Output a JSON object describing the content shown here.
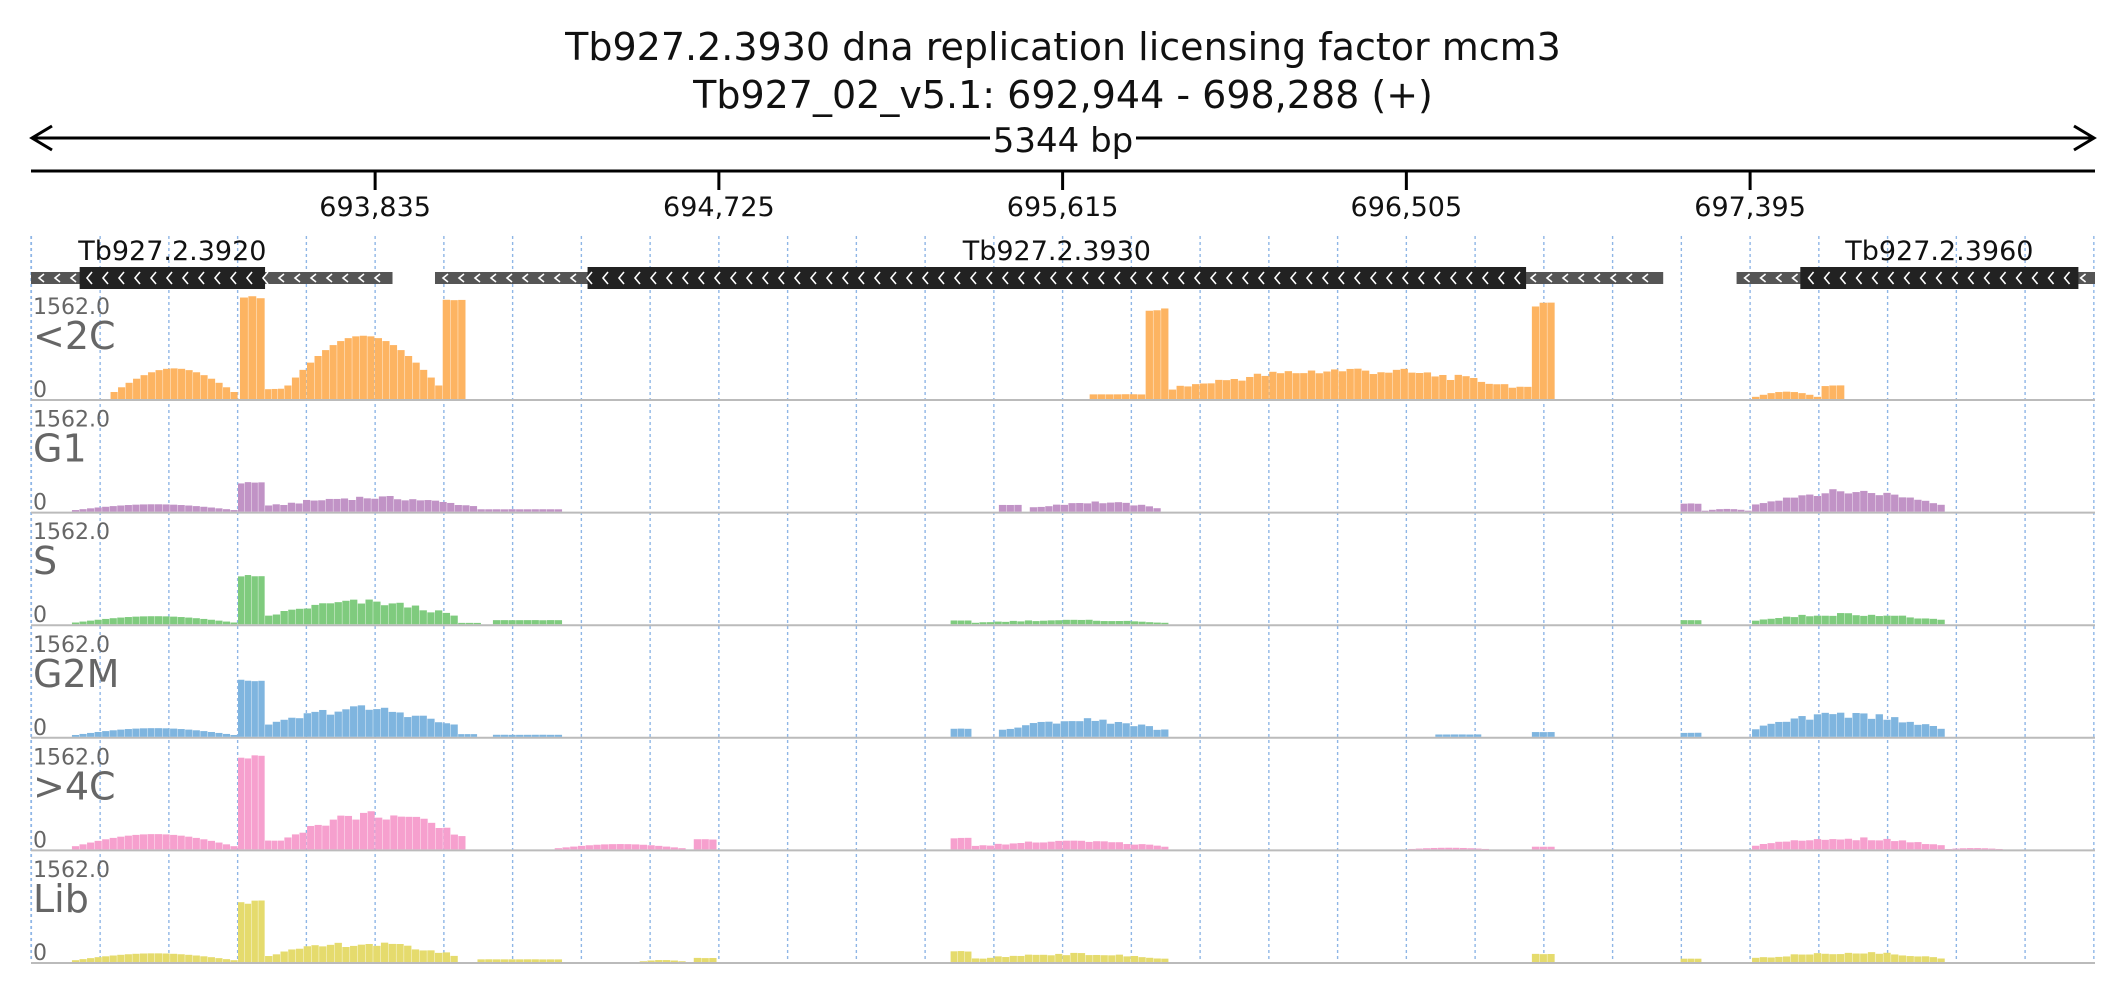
{
  "header": {
    "title_line1": "Tb927.2.3930  dna replication licensing factor mcm3",
    "title_line2": "Tb927_02_v5.1: 692,944 - 698,288 (+)",
    "span_label": "5344 bp"
  },
  "chart_data": {
    "type": "bar",
    "region": {
      "chromosome": "Tb927_02_v5.1",
      "start": 692944,
      "end": 698288,
      "strand": "+",
      "length_bp": 5344
    },
    "ticks": [
      {
        "pos": 693835,
        "label": "693,835"
      },
      {
        "pos": 694725,
        "label": "694,725"
      },
      {
        "pos": 695615,
        "label": "695,615"
      },
      {
        "pos": 696505,
        "label": "696,505"
      },
      {
        "pos": 697395,
        "label": "697,395"
      }
    ],
    "genes": [
      {
        "name": "Tb927.2.3920",
        "strand": "-",
        "utr_start": 692944,
        "utr_end": 693880,
        "cds_start": 693070,
        "cds_end": 693550
      },
      {
        "name": "Tb927.2.3930",
        "strand": "-",
        "utr_start": 693990,
        "utr_end": 697170,
        "cds_start": 694385,
        "cds_end": 696815
      },
      {
        "name": "Tb927.2.3960",
        "strand": "-",
        "utr_start": 697360,
        "utr_end": 698288,
        "cds_start": 697525,
        "cds_end": 698245
      }
    ],
    "ylim": [
      0,
      1562.0
    ],
    "y_max_label": "1562.0",
    "y_min_label": "0",
    "bin_width_bp": 20,
    "tracks": [
      {
        "name": "<2C",
        "color": "#fdb462",
        "segments": [
          {
            "start": 693150,
            "end": 693480,
            "profile": "hill",
            "peak": 460
          },
          {
            "start": 693485,
            "end": 693550,
            "profile": "flat",
            "peak": 1530
          },
          {
            "start": 693550,
            "end": 693600,
            "profile": "flat",
            "peak": 150
          },
          {
            "start": 693600,
            "end": 694010,
            "profile": "hill",
            "peak": 950
          },
          {
            "start": 694010,
            "end": 694070,
            "profile": "flat",
            "peak": 1500
          },
          {
            "start": 695685,
            "end": 695830,
            "profile": "flat",
            "peak": 70
          },
          {
            "start": 695830,
            "end": 695890,
            "profile": "flat",
            "peak": 1360
          },
          {
            "start": 695890,
            "end": 696830,
            "profile": "plateau",
            "peak": 430
          },
          {
            "start": 696830,
            "end": 696890,
            "profile": "flat",
            "peak": 1420
          },
          {
            "start": 697400,
            "end": 697580,
            "profile": "hill",
            "peak": 110
          },
          {
            "start": 697580,
            "end": 697640,
            "profile": "flat",
            "peak": 200
          }
        ]
      },
      {
        "name": "G1",
        "color": "#c193c6",
        "segments": [
          {
            "start": 693050,
            "end": 693480,
            "profile": "hill",
            "peak": 110
          },
          {
            "start": 693480,
            "end": 693550,
            "profile": "flat",
            "peak": 430
          },
          {
            "start": 693550,
            "end": 694100,
            "profile": "plateau",
            "peak": 210
          },
          {
            "start": 694100,
            "end": 694320,
            "profile": "flat",
            "peak": 35
          },
          {
            "start": 695450,
            "end": 695510,
            "profile": "flat",
            "peak": 100
          },
          {
            "start": 695530,
            "end": 695870,
            "profile": "plateau",
            "peak": 140
          },
          {
            "start": 697215,
            "end": 697270,
            "profile": "flat",
            "peak": 120
          },
          {
            "start": 697270,
            "end": 697400,
            "profile": "hill",
            "peak": 40
          },
          {
            "start": 697400,
            "end": 697900,
            "profile": "plateau",
            "peak": 300
          }
        ]
      },
      {
        "name": "S",
        "color": "#7fcb7e",
        "segments": [
          {
            "start": 693050,
            "end": 693480,
            "profile": "hill",
            "peak": 120
          },
          {
            "start": 693480,
            "end": 693550,
            "profile": "flat",
            "peak": 720
          },
          {
            "start": 693550,
            "end": 694050,
            "profile": "plateau",
            "peak": 330
          },
          {
            "start": 694050,
            "end": 694110,
            "profile": "flat",
            "peak": 20
          },
          {
            "start": 694140,
            "end": 694320,
            "profile": "flat",
            "peak": 60
          },
          {
            "start": 695325,
            "end": 695380,
            "profile": "flat",
            "peak": 55
          },
          {
            "start": 695380,
            "end": 695890,
            "profile": "plateau",
            "peak": 60
          },
          {
            "start": 697215,
            "end": 697270,
            "profile": "flat",
            "peak": 60
          },
          {
            "start": 697400,
            "end": 697900,
            "profile": "plateau",
            "peak": 150
          }
        ]
      },
      {
        "name": "G2M",
        "color": "#7fb5df",
        "segments": [
          {
            "start": 693050,
            "end": 693480,
            "profile": "hill",
            "peak": 130
          },
          {
            "start": 693480,
            "end": 693550,
            "profile": "flat",
            "peak": 860
          },
          {
            "start": 693550,
            "end": 694050,
            "profile": "plateau",
            "peak": 420
          },
          {
            "start": 694050,
            "end": 694100,
            "profile": "flat",
            "peak": 40
          },
          {
            "start": 694140,
            "end": 694320,
            "profile": "flat",
            "peak": 30
          },
          {
            "start": 695325,
            "end": 695380,
            "profile": "flat",
            "peak": 120
          },
          {
            "start": 695450,
            "end": 695890,
            "profile": "plateau",
            "peak": 250
          },
          {
            "start": 696580,
            "end": 696700,
            "profile": "flat",
            "peak": 35
          },
          {
            "start": 696830,
            "end": 696890,
            "profile": "flat",
            "peak": 70
          },
          {
            "start": 697215,
            "end": 697270,
            "profile": "flat",
            "peak": 60
          },
          {
            "start": 697400,
            "end": 697900,
            "profile": "plateau",
            "peak": 330
          }
        ]
      },
      {
        "name": ">4C",
        "color": "#f6a0ce",
        "segments": [
          {
            "start": 693050,
            "end": 693480,
            "profile": "hill",
            "peak": 230
          },
          {
            "start": 693480,
            "end": 693550,
            "profile": "flat",
            "peak": 1380
          },
          {
            "start": 693550,
            "end": 693600,
            "profile": "flat",
            "peak": 130
          },
          {
            "start": 693600,
            "end": 694070,
            "profile": "plateau",
            "peak": 520
          },
          {
            "start": 694300,
            "end": 694640,
            "profile": "hill",
            "peak": 80
          },
          {
            "start": 694660,
            "end": 694720,
            "profile": "flat",
            "peak": 150
          },
          {
            "start": 695325,
            "end": 695380,
            "profile": "flat",
            "peak": 170
          },
          {
            "start": 695380,
            "end": 695890,
            "profile": "plateau",
            "peak": 120
          },
          {
            "start": 696510,
            "end": 696720,
            "profile": "hill",
            "peak": 25
          },
          {
            "start": 696830,
            "end": 696890,
            "profile": "flat",
            "peak": 40
          },
          {
            "start": 697400,
            "end": 697900,
            "profile": "plateau",
            "peak": 160
          },
          {
            "start": 697900,
            "end": 698050,
            "profile": "hill",
            "peak": 20
          }
        ]
      },
      {
        "name": "Lib",
        "color": "#e5db6d",
        "segments": [
          {
            "start": 693050,
            "end": 693480,
            "profile": "hill",
            "peak": 130
          },
          {
            "start": 693480,
            "end": 693550,
            "profile": "flat",
            "peak": 900
          },
          {
            "start": 693550,
            "end": 694050,
            "profile": "plateau",
            "peak": 270
          },
          {
            "start": 694100,
            "end": 694320,
            "profile": "flat",
            "peak": 40
          },
          {
            "start": 694520,
            "end": 694640,
            "profile": "hill",
            "peak": 30
          },
          {
            "start": 694660,
            "end": 694720,
            "profile": "flat",
            "peak": 60
          },
          {
            "start": 695325,
            "end": 695380,
            "profile": "flat",
            "peak": 160
          },
          {
            "start": 695380,
            "end": 695890,
            "profile": "plateau",
            "peak": 120
          },
          {
            "start": 696830,
            "end": 696890,
            "profile": "flat",
            "peak": 120
          },
          {
            "start": 697215,
            "end": 697270,
            "profile": "flat",
            "peak": 50
          },
          {
            "start": 697400,
            "end": 697900,
            "profile": "plateau",
            "peak": 140
          }
        ]
      }
    ]
  }
}
